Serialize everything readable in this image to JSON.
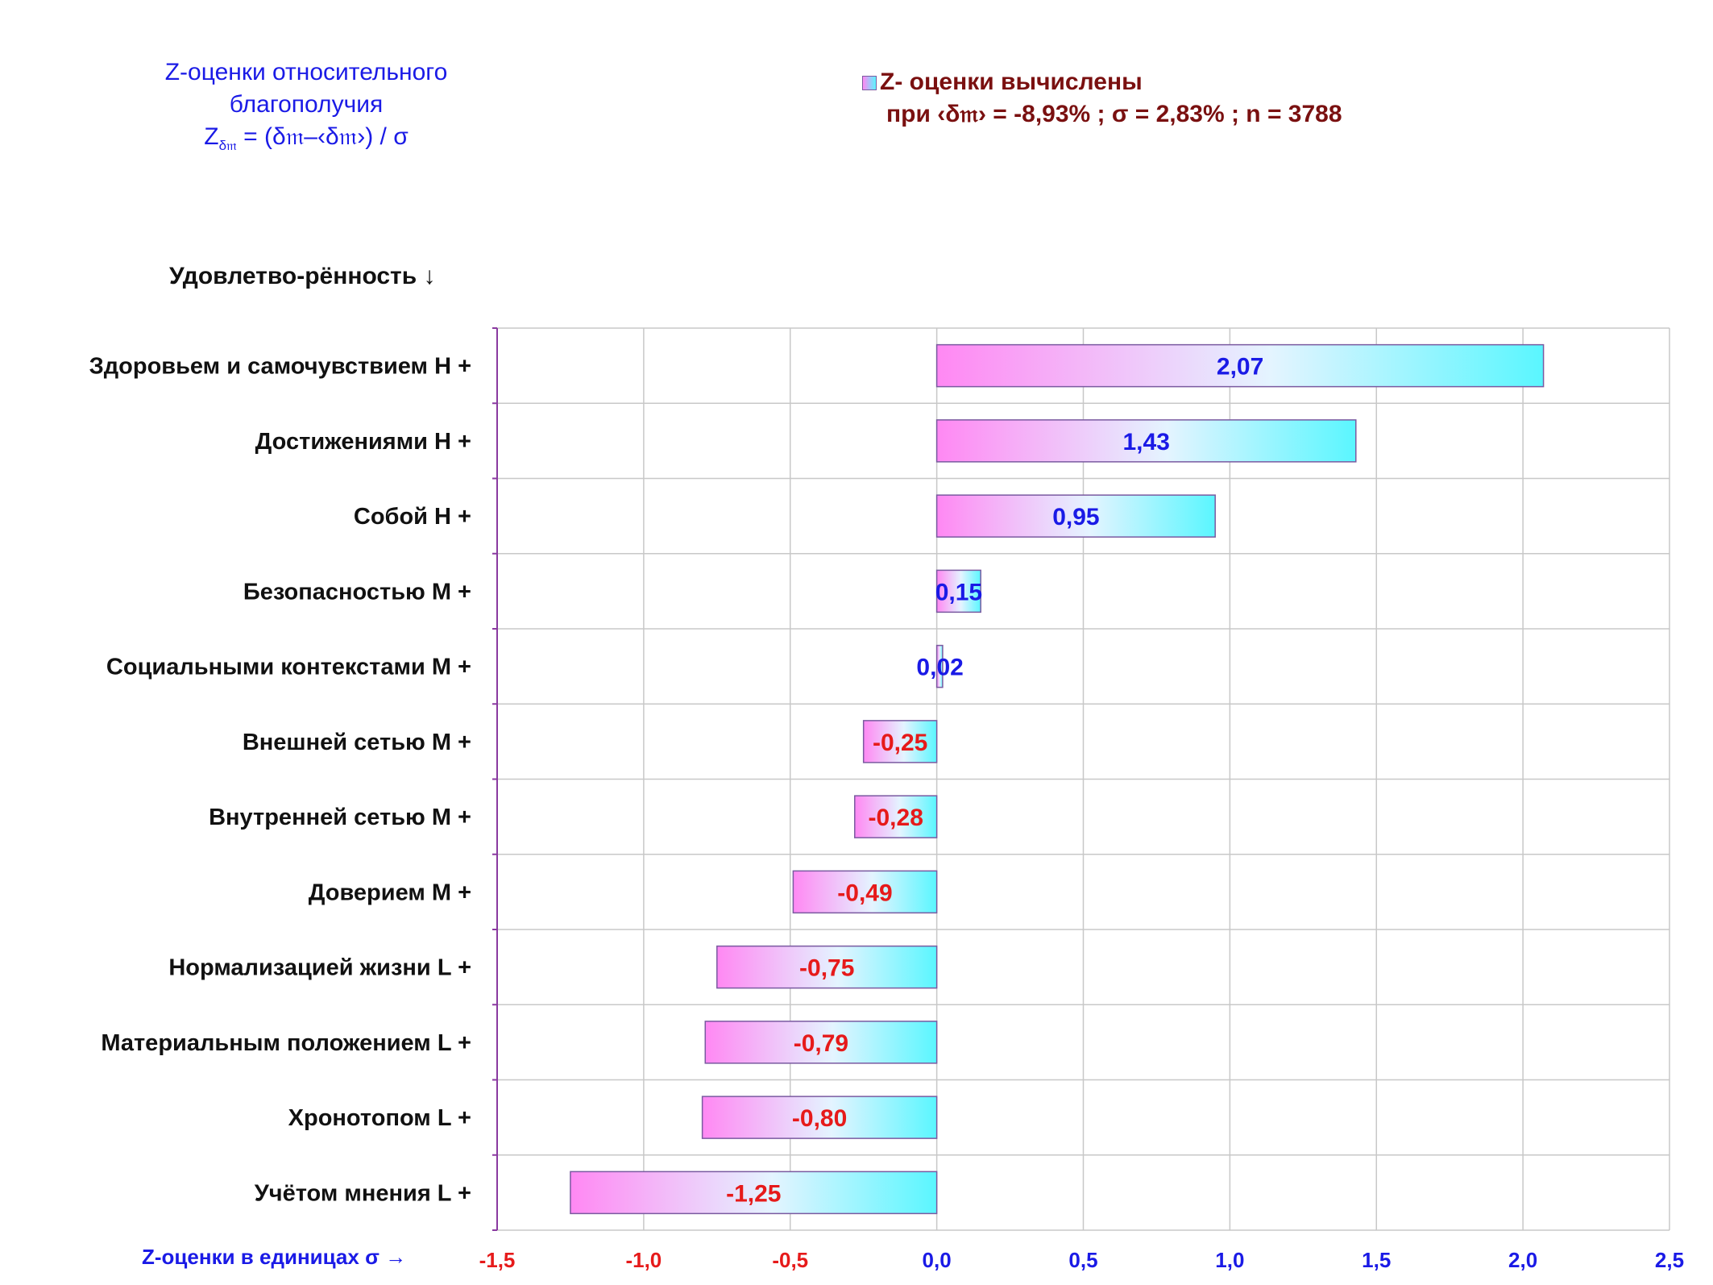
{
  "header": {
    "title_line1": "Z-оценки  относительного",
    "title_line2": "благополучия",
    "formula_prefix": "Z",
    "formula_sub": "δ𝔪",
    "formula_rest": " = (δ𝔪–‹δ𝔪›)  / σ"
  },
  "legend": {
    "line1": "Z- оценки вычислены",
    "line2": "при ‹δ𝔪› = -8,93% ; σ = 2,83% ; n = 3788"
  },
  "y_heading": "Удовлетво-рённость ↓",
  "x_heading": "Z-оценки в единицах σ →",
  "colors": {
    "positive_label": "#1a1ae6",
    "negative_label": "#e61a1a",
    "bar_left": "#ff88f3",
    "bar_right": "#5af6ff",
    "bar_border": "#7a5aa0",
    "grid": "#c8c8c8",
    "axis": "#8a3aa0"
  },
  "chart_data": {
    "type": "bar",
    "orientation": "horizontal",
    "categories": [
      "Здоровьем и самочувствием  H +",
      "Достижениями  H +",
      "Собой  H +",
      "Безопасностью  M +",
      "Социальными контекстами  M +",
      "Внешней сетью  M +",
      "Внутренней сетью  M +",
      "Доверием  M +",
      "Нормализацией жизни  L +",
      "Материальным положением  L +",
      "Хронотопом  L +",
      "Учётом мнения  L +"
    ],
    "values": [
      2.07,
      1.43,
      0.95,
      0.15,
      0.02,
      -0.25,
      -0.28,
      -0.49,
      -0.75,
      -0.79,
      -0.8,
      -1.25
    ],
    "value_labels": [
      "2,07",
      "1,43",
      "0,95",
      "0,15",
      "0,02",
      "-0,25",
      "-0,28",
      "-0,49",
      "-0,75",
      "-0,79",
      "-0,80",
      "-1,25"
    ],
    "xlim": [
      -1.5,
      2.5
    ],
    "xticks": [
      -1.5,
      -1.0,
      -0.5,
      0.0,
      0.5,
      1.0,
      1.5,
      2.0,
      2.5
    ],
    "xtick_labels": [
      "-1,5",
      "-1,0",
      "-0,5",
      "0,0",
      "0,5",
      "1,0",
      "1,5",
      "2,0",
      "2,5"
    ],
    "grid": true
  }
}
